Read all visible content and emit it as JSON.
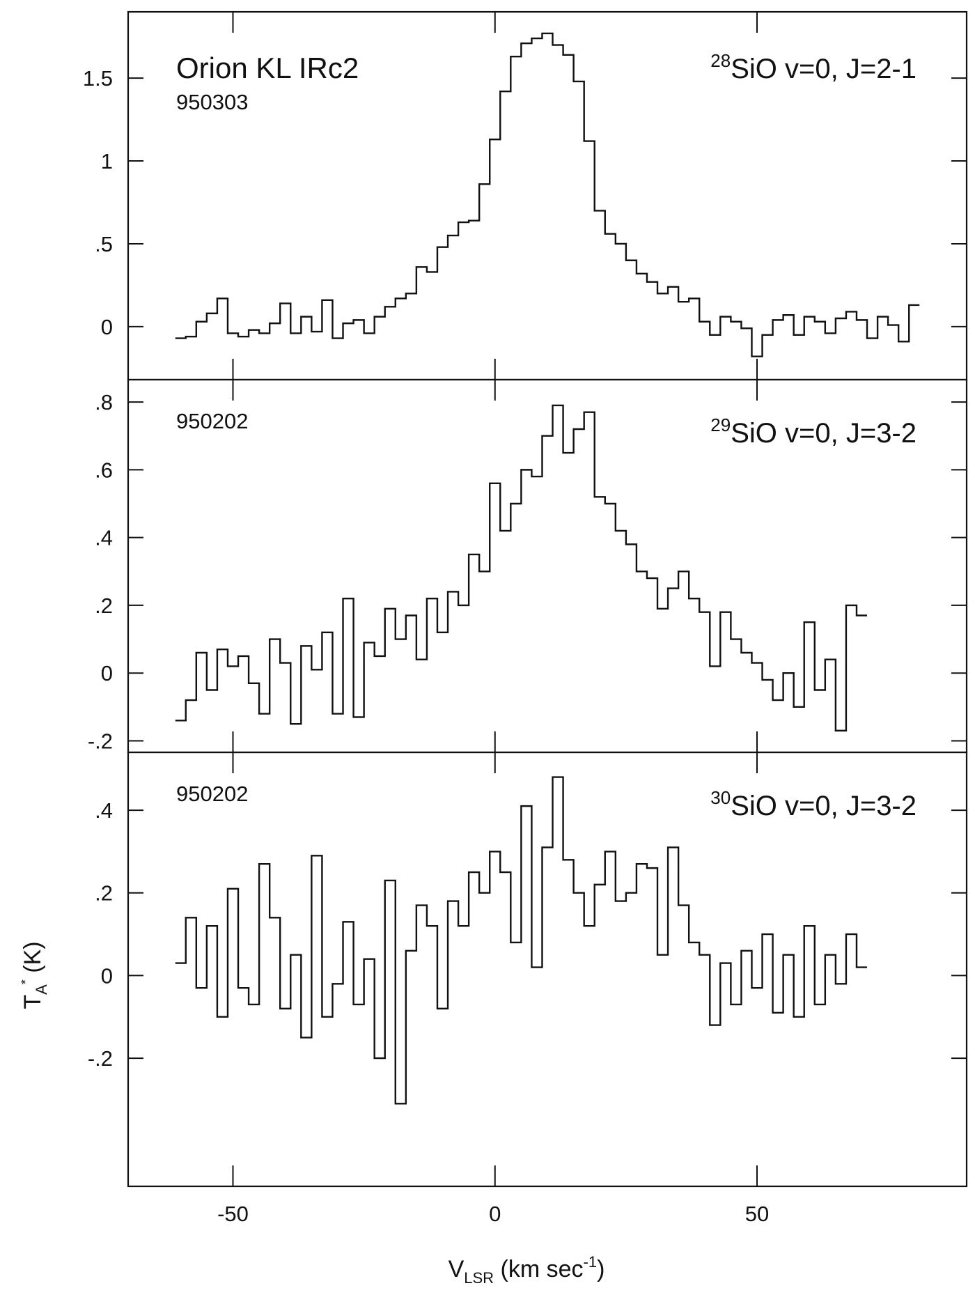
{
  "chart_data": [
    {
      "type": "line",
      "title": "Orion KL IRc2",
      "subtitle": "950303",
      "isotope": "28",
      "transition": "SiO v=0, J=2-1",
      "xlim": [
        -70,
        90
      ],
      "xticks": [
        -50,
        0,
        50
      ],
      "ylim": [
        -0.32,
        1.9
      ],
      "yticks": [
        {
          "value": 0,
          "label": "0"
        },
        {
          "value": 0.5,
          "label": ".5"
        },
        1,
        {
          "value": 1.5,
          "label": "1.5"
        }
      ],
      "series": [
        {
          "color": "#111111",
          "x": [
            -60,
            -58,
            -56,
            -54,
            -52,
            -50,
            -48,
            -46,
            -44,
            -42,
            -40,
            -38,
            -36,
            -34,
            -32,
            -30,
            -28,
            -26,
            -24,
            -22,
            -20,
            -18,
            -16,
            -14,
            -12,
            -10,
            -8,
            -6,
            -4,
            -2,
            0,
            2,
            4,
            6,
            8,
            10,
            12,
            14,
            16,
            18,
            20,
            22,
            24,
            26,
            28,
            30,
            32,
            34,
            36,
            38,
            40,
            42,
            44,
            46,
            48,
            50,
            52,
            54,
            56,
            58,
            60,
            62,
            64,
            66,
            68,
            70,
            72,
            74,
            76,
            78,
            80
          ],
          "values": [
            -0.07,
            -0.06,
            0.03,
            0.08,
            0.17,
            -0.04,
            -0.06,
            -0.02,
            -0.04,
            0.02,
            0.14,
            -0.04,
            0.06,
            -0.03,
            0.16,
            -0.07,
            0.02,
            0.04,
            -0.04,
            0.06,
            0.12,
            0.17,
            0.2,
            0.36,
            0.33,
            0.48,
            0.55,
            0.63,
            0.64,
            0.86,
            1.13,
            1.42,
            1.63,
            1.71,
            1.74,
            1.77,
            1.7,
            1.64,
            1.48,
            1.12,
            0.7,
            0.56,
            0.5,
            0.4,
            0.32,
            0.27,
            0.2,
            0.24,
            0.15,
            0.17,
            0.03,
            -0.05,
            0.06,
            0.03,
            -0.01,
            -0.18,
            -0.05,
            0.04,
            0.07,
            -0.05,
            0.06,
            0.03,
            -0.04,
            0.05,
            0.09,
            0.04,
            -0.07,
            0.06,
            0.01,
            -0.09,
            0.13
          ]
        }
      ]
    },
    {
      "type": "line",
      "subtitle": "950202",
      "isotope": "29",
      "transition": "SiO v=0, J=3-2",
      "xlim": [
        -70,
        90
      ],
      "xticks": [
        -50,
        0,
        50
      ],
      "ylim": [
        -0.234,
        0.866
      ],
      "yticks": [
        {
          "value": -0.2,
          "label": "-.2"
        },
        0,
        {
          "value": 0.2,
          "label": ".2"
        },
        {
          "value": 0.4,
          "label": ".4"
        },
        {
          "value": 0.6,
          "label": ".6"
        },
        {
          "value": 0.8,
          "label": ".8"
        }
      ],
      "series": [
        {
          "color": "#111111",
          "x": [
            -60,
            -58,
            -56,
            -54,
            -52,
            -50,
            -48,
            -46,
            -44,
            -42,
            -40,
            -38,
            -36,
            -34,
            -32,
            -30,
            -28,
            -26,
            -24,
            -22,
            -20,
            -18,
            -16,
            -14,
            -12,
            -10,
            -8,
            -6,
            -4,
            -2,
            0,
            2,
            4,
            6,
            8,
            10,
            12,
            14,
            16,
            18,
            20,
            22,
            24,
            26,
            28,
            30,
            32,
            34,
            36,
            38,
            40,
            42,
            44,
            46,
            48,
            50,
            52,
            54,
            56,
            58,
            60,
            62,
            64,
            66,
            68,
            70
          ],
          "values": [
            -0.14,
            -0.08,
            0.06,
            -0.05,
            0.07,
            0.02,
            0.05,
            -0.03,
            -0.12,
            0.1,
            0.03,
            -0.15,
            0.08,
            0.01,
            0.12,
            -0.12,
            0.22,
            -0.13,
            0.09,
            0.05,
            0.19,
            0.1,
            0.17,
            0.04,
            0.22,
            0.12,
            0.24,
            0.2,
            0.35,
            0.3,
            0.56,
            0.42,
            0.5,
            0.6,
            0.58,
            0.7,
            0.79,
            0.65,
            0.72,
            0.77,
            0.52,
            0.5,
            0.42,
            0.38,
            0.3,
            0.28,
            0.19,
            0.25,
            0.3,
            0.22,
            0.18,
            0.02,
            0.18,
            0.1,
            0.06,
            0.03,
            -0.02,
            -0.08,
            0.0,
            -0.1,
            0.15,
            -0.05,
            0.04,
            -0.17,
            0.2,
            0.17
          ]
        }
      ]
    },
    {
      "type": "line",
      "subtitle": "950202",
      "isotope": "30",
      "transition": "SiO v=0, J=3-2",
      "xlim": [
        -70,
        90
      ],
      "xticks": [
        -50,
        0,
        50
      ],
      "ylim": [
        -0.51,
        0.54
      ],
      "yticks": [
        {
          "value": -0.2,
          "label": "-.2"
        },
        0,
        {
          "value": 0.2,
          "label": ".2"
        },
        {
          "value": 0.4,
          "label": ".4"
        }
      ],
      "xlabel": [
        "V",
        "LSR",
        " (km sec",
        "-1",
        ")"
      ],
      "ylabel": [
        "T",
        "A",
        "*",
        " (K)"
      ],
      "series": [
        {
          "color": "#111111",
          "x": [
            -60,
            -58,
            -56,
            -54,
            -52,
            -50,
            -48,
            -46,
            -44,
            -42,
            -40,
            -38,
            -36,
            -34,
            -32,
            -30,
            -28,
            -26,
            -24,
            -22,
            -20,
            -18,
            -16,
            -14,
            -12,
            -10,
            -8,
            -6,
            -4,
            -2,
            0,
            2,
            4,
            6,
            8,
            10,
            12,
            14,
            16,
            18,
            20,
            22,
            24,
            26,
            28,
            30,
            32,
            34,
            36,
            38,
            40,
            42,
            44,
            46,
            48,
            50,
            52,
            54,
            56,
            58,
            60,
            62,
            64,
            66,
            68,
            70
          ],
          "values": [
            0.03,
            0.14,
            -0.03,
            0.12,
            -0.1,
            0.21,
            -0.03,
            -0.07,
            0.27,
            0.14,
            -0.08,
            0.05,
            -0.15,
            0.29,
            -0.1,
            -0.02,
            0.13,
            -0.07,
            0.04,
            -0.2,
            0.23,
            -0.31,
            0.06,
            0.17,
            0.12,
            -0.08,
            0.18,
            0.12,
            0.25,
            0.2,
            0.3,
            0.25,
            0.08,
            0.41,
            0.02,
            0.31,
            0.48,
            0.28,
            0.2,
            0.12,
            0.22,
            0.3,
            0.18,
            0.2,
            0.27,
            0.26,
            0.05,
            0.31,
            0.17,
            0.08,
            0.05,
            -0.12,
            0.03,
            -0.07,
            0.06,
            -0.03,
            0.1,
            -0.09,
            0.05,
            -0.1,
            0.12,
            -0.07,
            0.05,
            -0.02,
            0.1,
            0.02
          ]
        }
      ]
    }
  ]
}
